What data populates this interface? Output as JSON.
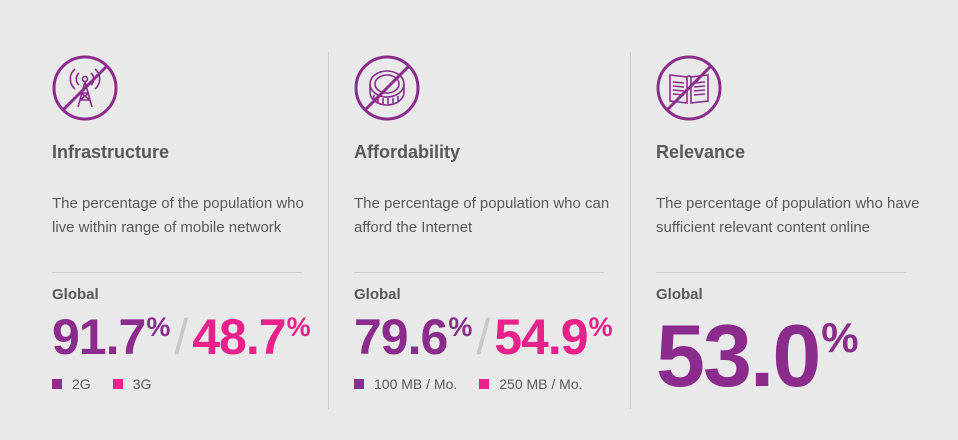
{
  "colors": {
    "purple": "#8b2c8d",
    "pink": "#e8228a",
    "text": "#58595b",
    "background": "#e9e9ea"
  },
  "columns": [
    {
      "icon": "no-signal-tower-icon",
      "title": "Infrastructure",
      "description": "The percentage of the population who live within range of mobile network",
      "global_label": "Global",
      "values": [
        {
          "value": "91.7",
          "unit": "%",
          "color": "#8b2c8d"
        },
        {
          "value": "48.7",
          "unit": "%",
          "color": "#e8228a"
        }
      ],
      "separator": "/",
      "legend": [
        {
          "label": "2G",
          "color": "#8b2c8d"
        },
        {
          "label": "3G",
          "color": "#e8228a"
        }
      ]
    },
    {
      "icon": "no-coin-icon",
      "title": "Affordability",
      "description": "The percentage of population who can afford the Internet",
      "global_label": "Global",
      "values": [
        {
          "value": "79.6",
          "unit": "%",
          "color": "#8b2c8d"
        },
        {
          "value": "54.9",
          "unit": "%",
          "color": "#e8228a"
        }
      ],
      "separator": "/",
      "legend": [
        {
          "label": "100 MB / Mo.",
          "color": "#8b2c8d"
        },
        {
          "label": "250 MB / Mo.",
          "color": "#e8228a"
        }
      ]
    },
    {
      "icon": "no-book-icon",
      "title": "Relevance",
      "description": "The percentage of population who have sufficient relevant content online",
      "global_label": "Global",
      "values": [
        {
          "value": "53.0",
          "unit": "%",
          "color": "#8b2c8d"
        }
      ]
    }
  ]
}
